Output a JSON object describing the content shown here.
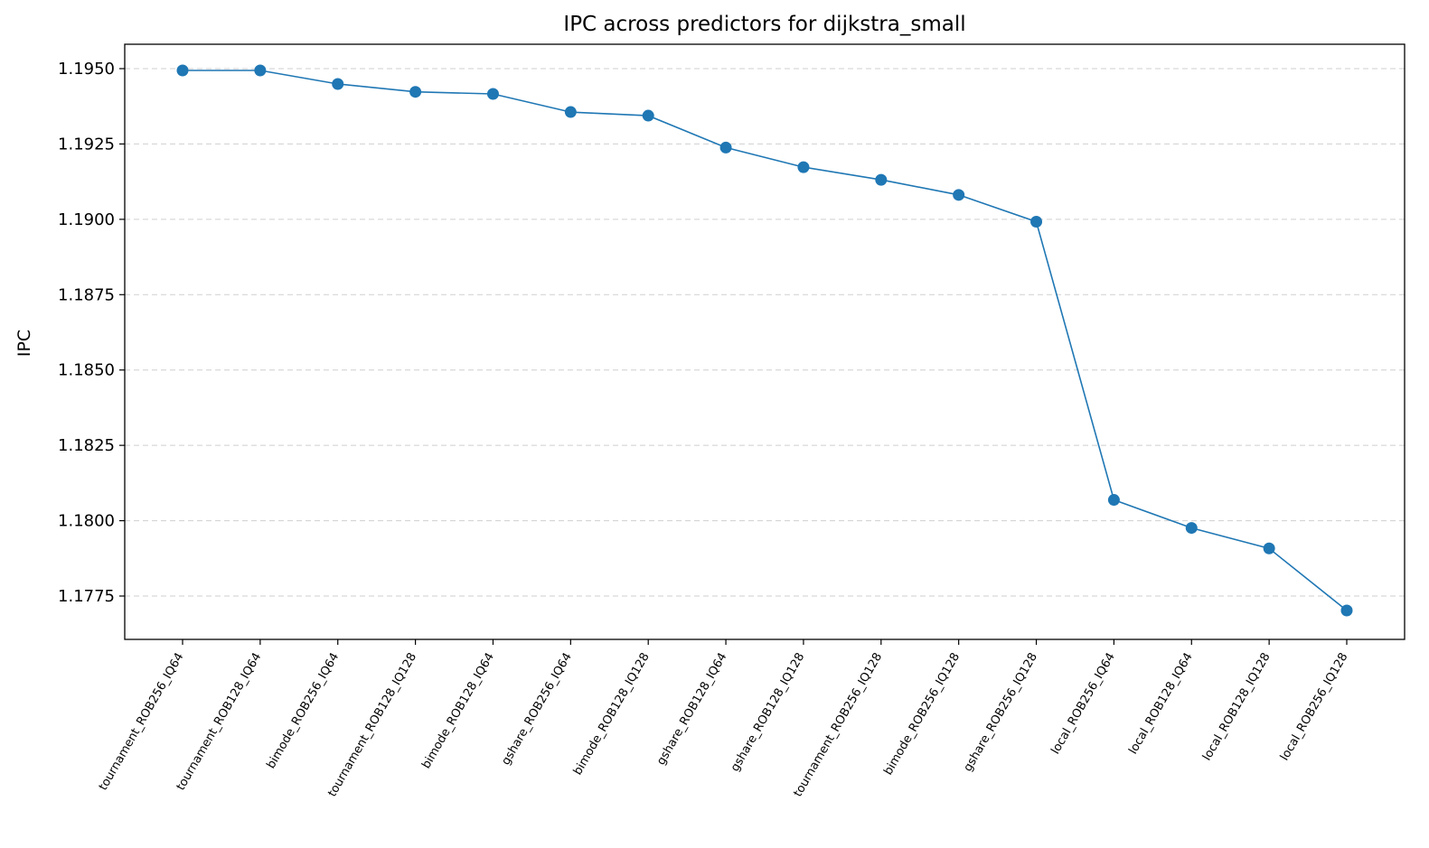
{
  "chart_data": {
    "type": "line",
    "title": "IPC across predictors for dijkstra_small",
    "xlabel": "",
    "ylabel": "IPC",
    "categories": [
      "tournament_ROB256_IQ64",
      "tournament_ROB128_IQ64",
      "bimode_ROB256_IQ64",
      "tournament_ROB128_IQ128",
      "bimode_ROB128_IQ64",
      "gshare_ROB256_IQ64",
      "bimode_ROB128_IQ128",
      "gshare_ROB128_IQ64",
      "gshare_ROB128_IQ128",
      "tournament_ROB256_IQ128",
      "bimode_ROB256_IQ128",
      "gshare_ROB256_IQ128",
      "local_ROB256_IQ64",
      "local_ROB128_IQ64",
      "local_ROB128_IQ128",
      "local_ROB256_IQ128"
    ],
    "series": [
      {
        "values": [
          1.19494,
          1.19494,
          1.19449,
          1.19423,
          1.19416,
          1.19356,
          1.19344,
          1.19238,
          1.19173,
          1.19131,
          1.19081,
          1.18992,
          1.18069,
          1.17976,
          1.17908,
          1.17702
        ],
        "color": "#1f77b4"
      }
    ],
    "yticks": [
      "1.1775",
      "1.1800",
      "1.1825",
      "1.1850",
      "1.1875",
      "1.1900",
      "1.1925",
      "1.1950"
    ],
    "ylim": [
      1.1762,
      1.1959
    ],
    "grid": "y-dashed",
    "legend": "none"
  }
}
